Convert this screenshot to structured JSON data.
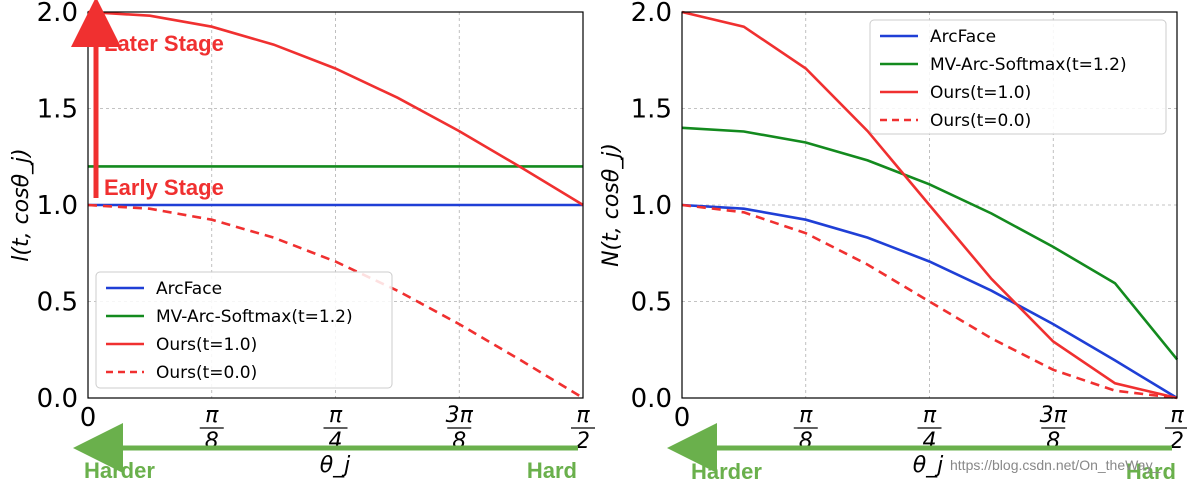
{
  "chart_data": [
    {
      "type": "line",
      "id": "left",
      "ylabel": "l(t, cosθ_j)",
      "xlabel": "θ_j",
      "xlim": [
        0,
        1.5708
      ],
      "ylim": [
        0,
        2.0
      ],
      "yticks": [
        "0.0",
        "0.5",
        "1.0",
        "1.5",
        "2.0"
      ],
      "xticks": [
        "0",
        "π/8",
        "π/4",
        "3π/8",
        "π/2"
      ],
      "grid": true,
      "legend_position": "bottom-left",
      "series": [
        {
          "name": "ArcFace",
          "color": "#1f3fd6",
          "style": "solid",
          "x": [
            0,
            0.196,
            0.393,
            0.589,
            0.785,
            0.982,
            1.178,
            1.374,
            1.571
          ],
          "y": [
            1.0,
            1.0,
            1.0,
            1.0,
            1.0,
            1.0,
            1.0,
            1.0,
            1.0
          ]
        },
        {
          "name": "MV-Arc-Softmax(t=1.2)",
          "color": "#138a1e",
          "style": "solid",
          "x": [
            0,
            0.196,
            0.393,
            0.589,
            0.785,
            0.982,
            1.178,
            1.374,
            1.571
          ],
          "y": [
            1.2,
            1.2,
            1.2,
            1.2,
            1.2,
            1.2,
            1.2,
            1.2,
            1.2
          ]
        },
        {
          "name": "Ours(t=1.0)",
          "color": "#f03030",
          "style": "solid",
          "x": [
            0,
            0.196,
            0.393,
            0.589,
            0.785,
            0.982,
            1.178,
            1.374,
            1.571
          ],
          "y": [
            2.0,
            1.981,
            1.924,
            1.831,
            1.707,
            1.556,
            1.383,
            1.195,
            1.0
          ]
        },
        {
          "name": "Ours(t=0.0)",
          "color": "#f03030",
          "style": "dashed",
          "x": [
            0,
            0.196,
            0.393,
            0.589,
            0.785,
            0.982,
            1.178,
            1.374,
            1.571
          ],
          "y": [
            1.0,
            0.981,
            0.924,
            0.831,
            0.707,
            0.556,
            0.383,
            0.195,
            0.0
          ]
        }
      ],
      "annotations": {
        "later_stage": "Later Stage",
        "early_stage": "Early Stage",
        "harder": "Harder",
        "hard": "Hard"
      }
    },
    {
      "type": "line",
      "id": "right",
      "ylabel": "N(t, cosθ_j)",
      "xlabel": "θ_j",
      "xlim": [
        0,
        1.5708
      ],
      "ylim": [
        0,
        2.0
      ],
      "yticks": [
        "0.0",
        "0.5",
        "1.0",
        "1.5",
        "2.0"
      ],
      "xticks": [
        "0",
        "π/8",
        "π/4",
        "3π/8",
        "π/2"
      ],
      "grid": true,
      "legend_position": "top-right",
      "series": [
        {
          "name": "ArcFace",
          "color": "#1f3fd6",
          "style": "solid",
          "x": [
            0,
            0.196,
            0.393,
            0.589,
            0.785,
            0.982,
            1.178,
            1.374,
            1.571
          ],
          "y": [
            1.0,
            0.981,
            0.924,
            0.831,
            0.707,
            0.556,
            0.383,
            0.195,
            0.0
          ]
        },
        {
          "name": "MV-Arc-Softmax(t=1.2)",
          "color": "#138a1e",
          "style": "solid",
          "x": [
            0,
            0.196,
            0.393,
            0.589,
            0.785,
            0.982,
            1.178,
            1.374,
            1.571
          ],
          "y": [
            1.4,
            1.381,
            1.324,
            1.231,
            1.107,
            0.956,
            0.783,
            0.595,
            0.2
          ]
        },
        {
          "name": "Ours(t=1.0)",
          "color": "#f03030",
          "style": "solid",
          "x": [
            0,
            0.196,
            0.393,
            0.589,
            0.785,
            0.982,
            1.178,
            1.374,
            1.571
          ],
          "y": [
            2.0,
            1.924,
            1.707,
            1.383,
            1.0,
            0.617,
            0.293,
            0.076,
            0.0
          ]
        },
        {
          "name": "Ours(t=0.0)",
          "color": "#f03030",
          "style": "dashed",
          "x": [
            0,
            0.196,
            0.393,
            0.589,
            0.785,
            0.982,
            1.178,
            1.374,
            1.571
          ],
          "y": [
            1.0,
            0.962,
            0.854,
            0.691,
            0.5,
            0.309,
            0.146,
            0.038,
            0.0
          ]
        }
      ],
      "annotations": {
        "harder": "Harder",
        "hard": "Hard"
      }
    }
  ],
  "watermark": "https://blog.csdn.net/On_theWay_"
}
